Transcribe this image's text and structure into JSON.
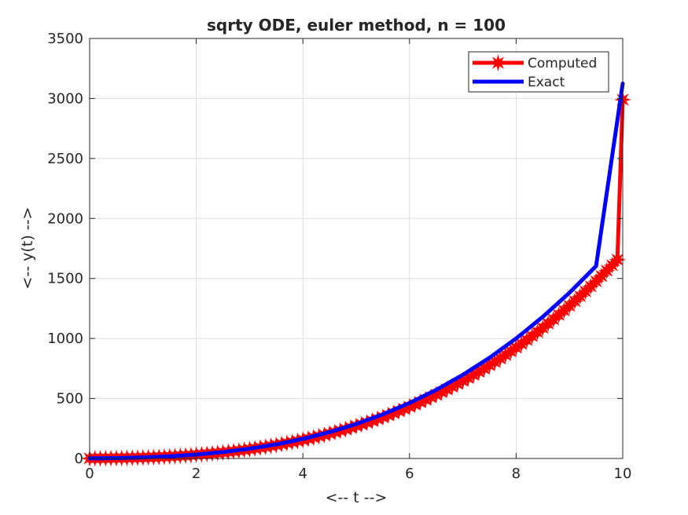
{
  "chart_data": {
    "type": "line",
    "title": "sqrty ODE, euler method, n = 100",
    "xlabel": "<-- t -->",
    "ylabel": "<-- y(t) -->",
    "xlim": [
      0,
      10
    ],
    "ylim": [
      0,
      3500
    ],
    "xticks": [
      0,
      2,
      4,
      6,
      8,
      10
    ],
    "yticks": [
      0,
      500,
      1000,
      1500,
      2000,
      2500,
      3000,
      3500
    ],
    "grid": true,
    "legend_position": "top-right",
    "series": [
      {
        "name": "Computed",
        "color": "#ff0000",
        "marker": "star",
        "x": [
          0,
          0.1,
          0.2,
          0.3,
          0.4,
          0.5,
          0.6,
          0.7,
          0.8,
          0.9,
          1.0,
          1.1,
          1.2,
          1.3,
          1.4,
          1.5,
          1.6,
          1.7,
          1.8,
          1.9,
          2.0,
          2.1,
          2.2,
          2.3,
          2.4,
          2.5,
          2.6,
          2.7,
          2.8,
          2.9,
          3.0,
          3.1,
          3.2,
          3.3,
          3.4,
          3.5,
          3.6,
          3.7,
          3.8,
          3.9,
          4.0,
          4.1,
          4.2,
          4.3,
          4.4,
          4.5,
          4.6,
          4.7,
          4.8,
          4.9,
          5.0,
          5.1,
          5.2,
          5.3,
          5.4,
          5.5,
          5.6,
          5.7,
          5.8,
          5.9,
          6.0,
          6.1,
          6.2,
          6.3,
          6.4,
          6.5,
          6.6,
          6.7,
          6.8,
          6.9,
          7.0,
          7.1,
          7.2,
          7.3,
          7.4,
          7.5,
          7.6,
          7.7,
          7.8,
          7.9,
          8.0,
          8.1,
          8.2,
          8.3,
          8.4,
          8.5,
          8.6,
          8.7,
          8.8,
          8.9,
          9.0,
          9.1,
          9.2,
          9.3,
          9.4,
          9.5,
          9.6,
          9.7,
          9.8,
          9.9,
          10.0
        ],
        "y": [
          1.0,
          1.2,
          1.5,
          1.9,
          2.4,
          3.0,
          3.8,
          4.6,
          5.6,
          6.7,
          8.0,
          9.4,
          11.0,
          12.8,
          14.8,
          16.9,
          19.3,
          21.8,
          24.6,
          27.6,
          30.8,
          34.3,
          38.0,
          42.0,
          46.2,
          50.7,
          55.5,
          60.5,
          65.9,
          71.5,
          77.4,
          83.7,
          90.3,
          97.2,
          104.4,
          111.9,
          119.8,
          128.1,
          136.7,
          145.6,
          155.0,
          164.7,
          174.8,
          185.3,
          196.2,
          207.5,
          219.2,
          231.4,
          243.9,
          256.9,
          270.4,
          284.3,
          298.7,
          313.5,
          328.8,
          344.6,
          360.9,
          377.7,
          395.0,
          412.8,
          431.2,
          450.1,
          469.5,
          489.5,
          510.1,
          531.2,
          552.9,
          575.2,
          598.1,
          621.7,
          645.8,
          670.6,
          696.0,
          722.0,
          748.7,
          776.1,
          804.1,
          832.8,
          862.2,
          892.3,
          923.1,
          954.6,
          986.9,
          1019.8,
          1053.6,
          1088.1,
          1123.3,
          1159.4,
          1196.2,
          1233.9,
          1272.3,
          1311.6,
          1351.7,
          1392.7,
          1434.5,
          1477.1,
          1520.7,
          1565.1,
          1610.4,
          1656.6,
          2990.0
        ]
      },
      {
        "name": "Exact",
        "color": "#0000ff",
        "marker": "none",
        "x": [
          0,
          0.5,
          1.0,
          1.5,
          2.0,
          2.5,
          3.0,
          3.5,
          4.0,
          4.5,
          5.0,
          5.5,
          6.0,
          6.5,
          7.0,
          7.5,
          8.0,
          8.5,
          9.0,
          9.5,
          10.0
        ],
        "y": [
          1.0,
          3.2,
          8.6,
          18.1,
          32.7,
          53.5,
          81.4,
          117.6,
          163.3,
          219.4,
          287.2,
          367.7,
          462.1,
          571.4,
          696.7,
          839.2,
          1000.0,
          1180.2,
          1380.9,
          1603.2,
          3125.0
        ]
      }
    ]
  }
}
